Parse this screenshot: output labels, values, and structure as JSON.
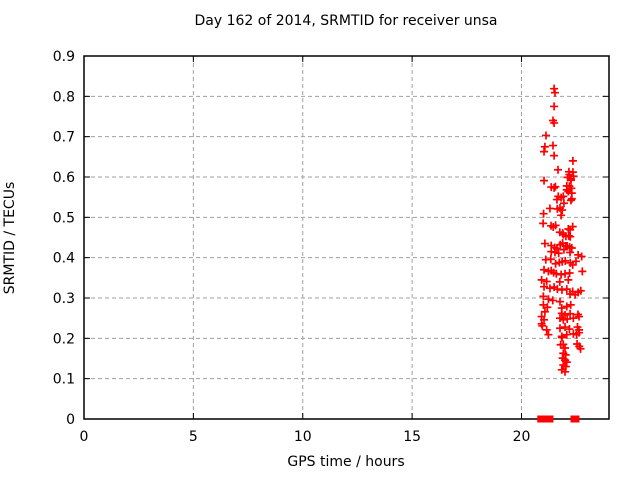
{
  "colors": {
    "background": "#ffffff",
    "marker": "#ff0000",
    "grid": "#a0a0a0",
    "axis": "#000000",
    "text": "#000000"
  },
  "chart_data": {
    "type": "scatter",
    "title": "Day 162 of 2014, SRMTID for receiver unsa",
    "xlabel": "GPS time / hours",
    "ylabel": "SRMTID / TECUs",
    "xlim": [
      0,
      24
    ],
    "ylim": [
      0,
      0.9
    ],
    "grid": "dashed",
    "legend_position": "none",
    "marker_style": "plus",
    "xticks": {
      "values": [
        0,
        5,
        10,
        15,
        20
      ],
      "labels": [
        "0",
        "5",
        "10",
        "15",
        "20"
      ]
    },
    "yticks": {
      "values": [
        0,
        0.1,
        0.2,
        0.3,
        0.4,
        0.5,
        0.6,
        0.7,
        0.8,
        0.9
      ],
      "labels": [
        "0",
        "0.1",
        "0.2",
        "0.3",
        "0.4",
        "0.5",
        "0.6",
        "0.7",
        "0.8",
        "0.9"
      ]
    },
    "series": [
      {
        "name": "SRMTID",
        "color": "#ff0000",
        "points": [
          [
            21.49,
            0.819
          ],
          [
            21.53,
            0.809
          ],
          [
            21.49,
            0.775
          ],
          [
            21.44,
            0.74
          ],
          [
            21.49,
            0.734
          ],
          [
            21.12,
            0.703
          ],
          [
            21.44,
            0.678
          ],
          [
            21.07,
            0.675
          ],
          [
            21.03,
            0.663
          ],
          [
            21.49,
            0.653
          ],
          [
            22.35,
            0.64
          ],
          [
            21.67,
            0.618
          ],
          [
            22.17,
            0.613
          ],
          [
            22.35,
            0.612
          ],
          [
            22.19,
            0.606
          ],
          [
            22.37,
            0.602
          ],
          [
            22.11,
            0.599
          ],
          [
            22.26,
            0.596
          ],
          [
            21.03,
            0.591
          ],
          [
            22.26,
            0.592
          ],
          [
            21.36,
            0.575
          ],
          [
            21.55,
            0.576
          ],
          [
            21.49,
            0.573
          ],
          [
            22.07,
            0.578
          ],
          [
            22.19,
            0.577
          ],
          [
            22.28,
            0.572
          ],
          [
            22.07,
            0.568
          ],
          [
            22.14,
            0.564
          ],
          [
            22.3,
            0.56
          ],
          [
            21.91,
            0.552
          ],
          [
            21.68,
            0.552
          ],
          [
            21.81,
            0.549
          ],
          [
            22.3,
            0.546
          ],
          [
            21.62,
            0.544
          ],
          [
            22.26,
            0.542
          ],
          [
            21.94,
            0.535
          ],
          [
            21.3,
            0.522
          ],
          [
            21.64,
            0.521
          ],
          [
            21.76,
            0.523
          ],
          [
            21.86,
            0.518
          ],
          [
            21.01,
            0.509
          ],
          [
            21.81,
            0.505
          ],
          [
            20.99,
            0.485
          ],
          [
            21.35,
            0.479
          ],
          [
            21.45,
            0.476
          ],
          [
            21.56,
            0.48
          ],
          [
            22.34,
            0.477
          ],
          [
            22.14,
            0.471
          ],
          [
            22.22,
            0.469
          ],
          [
            21.75,
            0.463
          ],
          [
            21.88,
            0.461
          ],
          [
            21.91,
            0.457
          ],
          [
            22.03,
            0.453
          ],
          [
            22.16,
            0.454
          ],
          [
            22.23,
            0.452
          ],
          [
            21.07,
            0.435
          ],
          [
            21.88,
            0.436
          ],
          [
            21.36,
            0.43
          ],
          [
            21.52,
            0.425
          ],
          [
            22.09,
            0.429
          ],
          [
            21.62,
            0.422
          ],
          [
            21.77,
            0.432
          ],
          [
            22.02,
            0.429
          ],
          [
            22.2,
            0.426
          ],
          [
            22.3,
            0.424
          ],
          [
            21.94,
            0.42
          ],
          [
            21.36,
            0.415
          ],
          [
            21.53,
            0.413
          ],
          [
            21.7,
            0.411
          ],
          [
            22.22,
            0.413
          ],
          [
            22.59,
            0.407
          ],
          [
            22.75,
            0.403
          ],
          [
            21.11,
            0.395
          ],
          [
            21.34,
            0.396
          ],
          [
            22.49,
            0.391
          ],
          [
            21.56,
            0.385
          ],
          [
            21.73,
            0.388
          ],
          [
            21.86,
            0.39
          ],
          [
            22.0,
            0.392
          ],
          [
            22.23,
            0.387
          ],
          [
            22.34,
            0.382
          ],
          [
            21.03,
            0.37
          ],
          [
            21.23,
            0.366
          ],
          [
            21.36,
            0.368
          ],
          [
            21.47,
            0.363
          ],
          [
            22.78,
            0.366
          ],
          [
            21.59,
            0.36
          ],
          [
            21.81,
            0.358
          ],
          [
            21.99,
            0.36
          ],
          [
            22.2,
            0.362
          ],
          [
            20.92,
            0.345
          ],
          [
            21.15,
            0.341
          ],
          [
            21.75,
            0.34
          ],
          [
            22.14,
            0.345
          ],
          [
            21.03,
            0.328
          ],
          [
            21.3,
            0.324
          ],
          [
            21.49,
            0.327
          ],
          [
            21.64,
            0.322
          ],
          [
            21.85,
            0.32
          ],
          [
            22.07,
            0.322
          ],
          [
            22.34,
            0.316
          ],
          [
            22.59,
            0.314
          ],
          [
            22.71,
            0.318
          ],
          [
            21.0,
            0.304
          ],
          [
            21.23,
            0.297
          ],
          [
            21.43,
            0.294
          ],
          [
            21.76,
            0.291
          ],
          [
            22.22,
            0.31
          ],
          [
            22.45,
            0.308
          ],
          [
            21.0,
            0.283
          ],
          [
            21.18,
            0.277
          ],
          [
            21.84,
            0.275
          ],
          [
            22.07,
            0.279
          ],
          [
            22.25,
            0.283
          ],
          [
            21.07,
            0.266
          ],
          [
            20.92,
            0.254
          ],
          [
            21.84,
            0.262
          ],
          [
            21.99,
            0.258
          ],
          [
            22.22,
            0.261
          ],
          [
            22.58,
            0.259
          ],
          [
            22.63,
            0.254
          ],
          [
            21.03,
            0.246
          ],
          [
            21.76,
            0.25
          ],
          [
            21.91,
            0.246
          ],
          [
            22.09,
            0.248
          ],
          [
            22.37,
            0.25
          ],
          [
            20.92,
            0.236
          ],
          [
            20.95,
            0.231
          ],
          [
            21.15,
            0.221
          ],
          [
            21.76,
            0.225
          ],
          [
            21.99,
            0.228
          ],
          [
            22.19,
            0.223
          ],
          [
            22.56,
            0.228
          ],
          [
            22.63,
            0.221
          ],
          [
            21.23,
            0.209
          ],
          [
            21.84,
            0.205
          ],
          [
            22.07,
            0.209
          ],
          [
            22.37,
            0.211
          ],
          [
            22.63,
            0.214
          ],
          [
            22.52,
            0.209
          ],
          [
            21.85,
            0.202
          ],
          [
            21.79,
            0.184
          ],
          [
            21.91,
            0.185
          ],
          [
            21.99,
            0.176
          ],
          [
            22.54,
            0.186
          ],
          [
            22.64,
            0.18
          ],
          [
            22.7,
            0.174
          ],
          [
            21.91,
            0.163
          ],
          [
            22.02,
            0.159
          ],
          [
            21.88,
            0.151
          ],
          [
            21.99,
            0.146
          ],
          [
            22.07,
            0.141
          ],
          [
            21.91,
            0.134
          ],
          [
            22.03,
            0.13
          ],
          [
            21.84,
            0.122
          ],
          [
            21.99,
            0.117
          ],
          [
            20.88,
            0
          ],
          [
            20.96,
            0
          ],
          [
            21.23,
            0
          ],
          [
            21.3,
            0
          ],
          [
            22.4,
            0
          ],
          [
            22.49,
            0
          ]
        ]
      }
    ]
  }
}
